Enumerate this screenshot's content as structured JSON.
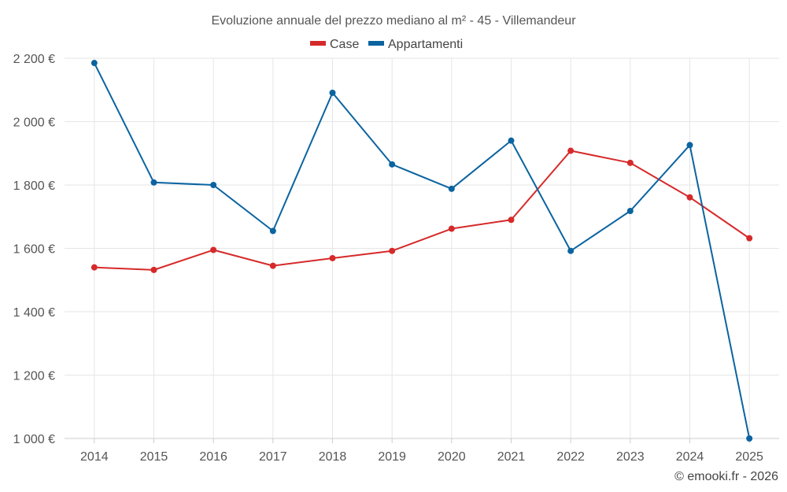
{
  "chart_data": {
    "type": "line",
    "title": "Evoluzione annuale del prezzo mediano al m² - 45 - Villemandeur",
    "categories": [
      "2014",
      "2015",
      "2016",
      "2017",
      "2018",
      "2019",
      "2020",
      "2021",
      "2022",
      "2023",
      "2024",
      "2025"
    ],
    "series": [
      {
        "name": "Case",
        "color": "#d62a2a",
        "values": [
          1540,
          1532,
          1595,
          1545,
          1569,
          1592,
          1662,
          1690,
          1908,
          1870,
          1761,
          1632
        ]
      },
      {
        "name": "Appartamenti",
        "color": "#0b64a0",
        "values": [
          2185,
          1808,
          1800,
          1655,
          2091,
          1865,
          1788,
          1940,
          1592,
          1718,
          1926,
          1000
        ]
      }
    ],
    "y_ticks": [
      1000,
      1200,
      1400,
      1600,
      1800,
      2000,
      2200
    ],
    "y_tick_labels": [
      "1 000 €",
      "1 200 €",
      "1 400 €",
      "1 600 €",
      "1 800 €",
      "2 000 €",
      "2 200 €"
    ],
    "ylim": [
      1000,
      2200
    ],
    "xlabel": "",
    "ylabel": "",
    "grid": true,
    "legend_position": "top-center"
  },
  "credit": "© emooki.fr - 2026"
}
